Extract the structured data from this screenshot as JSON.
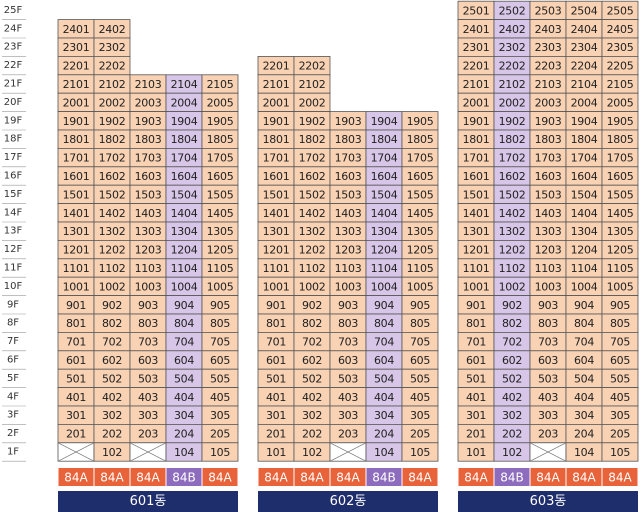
{
  "floors": [
    "25F",
    "24F",
    "23F",
    "22F",
    "21F",
    "20F",
    "19F",
    "18F",
    "17F",
    "16F",
    "15F",
    "14F",
    "13F",
    "12F",
    "11F",
    "10F",
    "9F",
    "8F",
    "7F",
    "6F",
    "5F",
    "4F",
    "3F",
    "2F",
    "1F"
  ],
  "buildings": [
    {
      "name": "601동",
      "types": [
        {
          "label": "84A",
          "color": "#e8623a",
          "cell_color": "#f9d2b3"
        },
        {
          "label": "84A",
          "color": "#e8623a",
          "cell_color": "#f9d2b3"
        },
        {
          "label": "84A",
          "color": "#e8623a",
          "cell_color": "#f9d2b3"
        },
        {
          "label": "84B",
          "color": "#8d6bbd",
          "cell_color": "#d7c6e8"
        },
        {
          "label": "84A",
          "color": "#e8623a",
          "cell_color": "#f9d2b3"
        }
      ],
      "rows": [
        [
          "2401",
          "2402"
        ],
        [
          "2301",
          "2302"
        ],
        [
          "2201",
          "2202"
        ],
        [
          "2101",
          "2102",
          "2103",
          "2104",
          "2105"
        ],
        [
          "2001",
          "2002",
          "2003",
          "2004",
          "2005"
        ],
        [
          "1901",
          "1902",
          "1903",
          "1904",
          "1905"
        ],
        [
          "1801",
          "1802",
          "1803",
          "1804",
          "1805"
        ],
        [
          "1701",
          "1702",
          "1703",
          "1704",
          "1705"
        ],
        [
          "1601",
          "1602",
          "1603",
          "1604",
          "1605"
        ],
        [
          "1501",
          "1502",
          "1503",
          "1504",
          "1505"
        ],
        [
          "1401",
          "1402",
          "1403",
          "1404",
          "1405"
        ],
        [
          "1301",
          "1302",
          "1303",
          "1304",
          "1305"
        ],
        [
          "1201",
          "1202",
          "1203",
          "1204",
          "1205"
        ],
        [
          "1101",
          "1102",
          "1103",
          "1104",
          "1105"
        ],
        [
          "1001",
          "1002",
          "1003",
          "1004",
          "1005"
        ],
        [
          "901",
          "902",
          "903",
          "904",
          "905"
        ],
        [
          "801",
          "802",
          "803",
          "804",
          "805"
        ],
        [
          "701",
          "702",
          "703",
          "704",
          "705"
        ],
        [
          "601",
          "602",
          "603",
          "604",
          "605"
        ],
        [
          "501",
          "502",
          "503",
          "504",
          "505"
        ],
        [
          "401",
          "402",
          "403",
          "404",
          "405"
        ],
        [
          "301",
          "302",
          "303",
          "304",
          "305"
        ],
        [
          "201",
          "202",
          "203",
          "204",
          "205"
        ],
        [
          null,
          "102",
          null,
          "104",
          "105"
        ]
      ]
    },
    {
      "name": "602동",
      "types": [
        {
          "label": "84A",
          "color": "#e8623a",
          "cell_color": "#f9d2b3"
        },
        {
          "label": "84A",
          "color": "#e8623a",
          "cell_color": "#f9d2b3"
        },
        {
          "label": "84A",
          "color": "#e8623a",
          "cell_color": "#f9d2b3"
        },
        {
          "label": "84B",
          "color": "#8d6bbd",
          "cell_color": "#d7c6e8"
        },
        {
          "label": "84A",
          "color": "#e8623a",
          "cell_color": "#f9d2b3"
        }
      ],
      "rows": [
        [
          "2201",
          "2202"
        ],
        [
          "2101",
          "2102"
        ],
        [
          "2001",
          "2002"
        ],
        [
          "1901",
          "1902",
          "1903",
          "1904",
          "1905"
        ],
        [
          "1801",
          "1802",
          "1803",
          "1804",
          "1805"
        ],
        [
          "1701",
          "1702",
          "1703",
          "1704",
          "1705"
        ],
        [
          "1601",
          "1602",
          "1603",
          "1604",
          "1605"
        ],
        [
          "1501",
          "1502",
          "1503",
          "1504",
          "1505"
        ],
        [
          "1401",
          "1402",
          "1403",
          "1404",
          "1405"
        ],
        [
          "1301",
          "1302",
          "1303",
          "1304",
          "1305"
        ],
        [
          "1201",
          "1202",
          "1203",
          "1204",
          "1205"
        ],
        [
          "1101",
          "1102",
          "1103",
          "1104",
          "1105"
        ],
        [
          "1001",
          "1002",
          "1003",
          "1004",
          "1005"
        ],
        [
          "901",
          "902",
          "903",
          "904",
          "905"
        ],
        [
          "801",
          "802",
          "803",
          "804",
          "805"
        ],
        [
          "701",
          "702",
          "703",
          "704",
          "705"
        ],
        [
          "601",
          "602",
          "603",
          "604",
          "605"
        ],
        [
          "501",
          "502",
          "503",
          "504",
          "505"
        ],
        [
          "401",
          "402",
          "403",
          "404",
          "405"
        ],
        [
          "301",
          "302",
          "303",
          "304",
          "305"
        ],
        [
          "201",
          "202",
          "203",
          "204",
          "205"
        ],
        [
          "101",
          "102",
          null,
          "104",
          "105"
        ]
      ]
    },
    {
      "name": "603동",
      "types": [
        {
          "label": "84A",
          "color": "#e8623a",
          "cell_color": "#f9d2b3"
        },
        {
          "label": "84B",
          "color": "#8d6bbd",
          "cell_color": "#d7c6e8"
        },
        {
          "label": "84A",
          "color": "#e8623a",
          "cell_color": "#f9d2b3"
        },
        {
          "label": "84A",
          "color": "#e8623a",
          "cell_color": "#f9d2b3"
        },
        {
          "label": "84A",
          "color": "#e8623a",
          "cell_color": "#f9d2b3"
        }
      ],
      "rows": [
        [
          "2501",
          "2502",
          "2503",
          "2504",
          "2505"
        ],
        [
          "2401",
          "2402",
          "2403",
          "2404",
          "2405"
        ],
        [
          "2301",
          "2302",
          "2303",
          "2304",
          "2305"
        ],
        [
          "2201",
          "2202",
          "2203",
          "2204",
          "2205"
        ],
        [
          "2101",
          "2102",
          "2103",
          "2104",
          "2105"
        ],
        [
          "2001",
          "2002",
          "2003",
          "2004",
          "2005"
        ],
        [
          "1901",
          "1902",
          "1903",
          "1904",
          "1905"
        ],
        [
          "1801",
          "1802",
          "1803",
          "1804",
          "1805"
        ],
        [
          "1701",
          "1702",
          "1703",
          "1704",
          "1705"
        ],
        [
          "1601",
          "1602",
          "1603",
          "1604",
          "1605"
        ],
        [
          "1501",
          "1502",
          "1503",
          "1504",
          "1505"
        ],
        [
          "1401",
          "1402",
          "1403",
          "1404",
          "1405"
        ],
        [
          "1301",
          "1302",
          "1303",
          "1304",
          "1305"
        ],
        [
          "1201",
          "1202",
          "1203",
          "1204",
          "1205"
        ],
        [
          "1101",
          "1102",
          "1103",
          "1104",
          "1105"
        ],
        [
          "1001",
          "1002",
          "1003",
          "1004",
          "1005"
        ],
        [
          "901",
          "902",
          "903",
          "904",
          "905"
        ],
        [
          "801",
          "802",
          "803",
          "804",
          "805"
        ],
        [
          "701",
          "702",
          "703",
          "704",
          "705"
        ],
        [
          "601",
          "602",
          "603",
          "604",
          "605"
        ],
        [
          "501",
          "502",
          "503",
          "504",
          "505"
        ],
        [
          "401",
          "402",
          "403",
          "404",
          "405"
        ],
        [
          "301",
          "302",
          "303",
          "304",
          "305"
        ],
        [
          "201",
          "202",
          "203",
          "204",
          "205"
        ],
        [
          "101",
          "102",
          null,
          "104",
          "105"
        ]
      ]
    }
  ]
}
